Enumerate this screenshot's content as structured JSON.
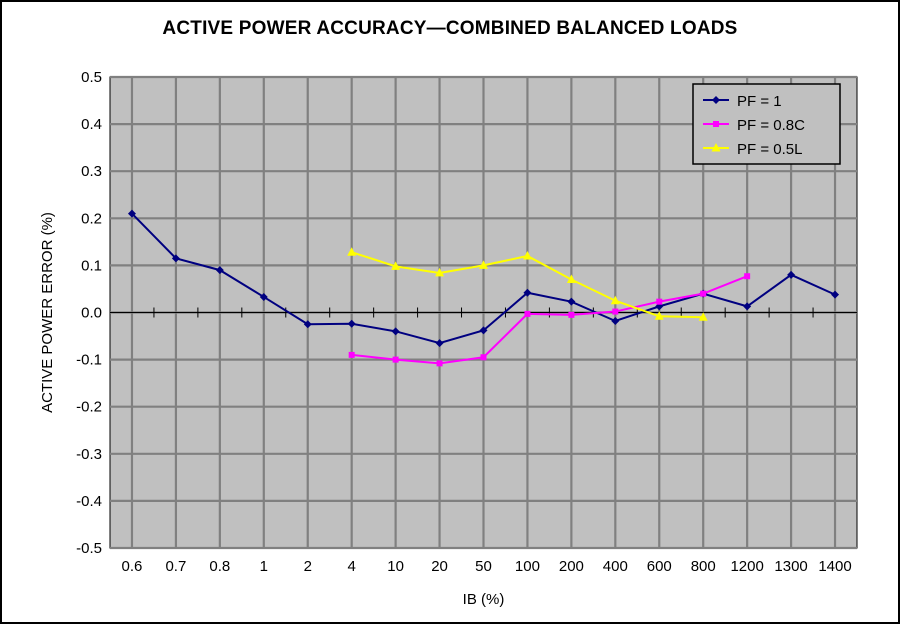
{
  "chart_data": {
    "type": "line",
    "title": "ACTIVE POWER ACCURACY—COMBINED BALANCED LOADS",
    "xlabel": "IB (%)",
    "ylabel": "ACTIVE POWER ERROR (%)",
    "categories": [
      "0.6",
      "0.7",
      "0.8",
      "1",
      "2",
      "4",
      "10",
      "20",
      "50",
      "100",
      "200",
      "400",
      "600",
      "800",
      "1200",
      "1300",
      "1400"
    ],
    "ylim": [
      -0.5,
      0.5
    ],
    "yticks": [
      "0.5",
      "0.4",
      "0.3",
      "0.2",
      "0.1",
      "0.0",
      "-0.1",
      "-0.2",
      "-0.3",
      "-0.4",
      "-0.5"
    ],
    "grid": true,
    "legend_position": "top-right",
    "series": [
      {
        "name": "PF = 1",
        "color": "#000080",
        "marker": "diamond",
        "x": [
          0,
          1,
          2,
          3,
          4,
          5,
          6,
          7,
          8,
          9,
          10,
          11,
          12,
          13,
          14,
          15,
          16
        ],
        "values": [
          0.21,
          0.115,
          0.09,
          0.033,
          -0.025,
          -0.024,
          -0.04,
          -0.065,
          -0.038,
          0.042,
          0.023,
          -0.018,
          0.013,
          0.04,
          0.013,
          0.08,
          0.038
        ]
      },
      {
        "name": "PF = 0.8C",
        "color": "#ff00ff",
        "marker": "square",
        "x": [
          5,
          6,
          7,
          8,
          9,
          10,
          11,
          12,
          13,
          14
        ],
        "values": [
          -0.09,
          -0.1,
          -0.108,
          -0.095,
          -0.003,
          -0.005,
          0.002,
          0.023,
          0.04,
          0.077
        ]
      },
      {
        "name": "PF = 0.5L",
        "color": "#ffff00",
        "marker": "triangle",
        "x": [
          5,
          6,
          7,
          8,
          9,
          10,
          11,
          12,
          13
        ],
        "values": [
          0.128,
          0.098,
          0.084,
          0.1,
          0.12,
          0.07,
          0.025,
          -0.008,
          -0.01
        ]
      }
    ]
  }
}
